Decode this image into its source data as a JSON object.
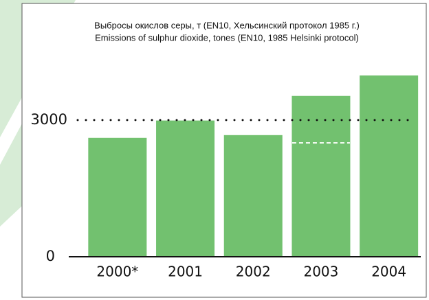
{
  "chart_data": {
    "type": "bar",
    "title": [
      "Выбросы окислов серы, т (EN10, Хельсинский протокол 1985 г.)",
      "Emissions of sulphur dioxide, tones (EN10, 1985 Helsinki protocol)"
    ],
    "categories": [
      "2000*",
      "2001",
      "2002",
      "2003",
      "2004"
    ],
    "values": [
      2610,
      2990,
      2670,
      3530,
      3980
    ],
    "color": "#72c16f",
    "ylim": [
      0,
      4400
    ],
    "yticks": [
      0,
      3000
    ],
    "grid": true,
    "markers": [
      {
        "category": "2003",
        "value": 2500
      }
    ]
  }
}
